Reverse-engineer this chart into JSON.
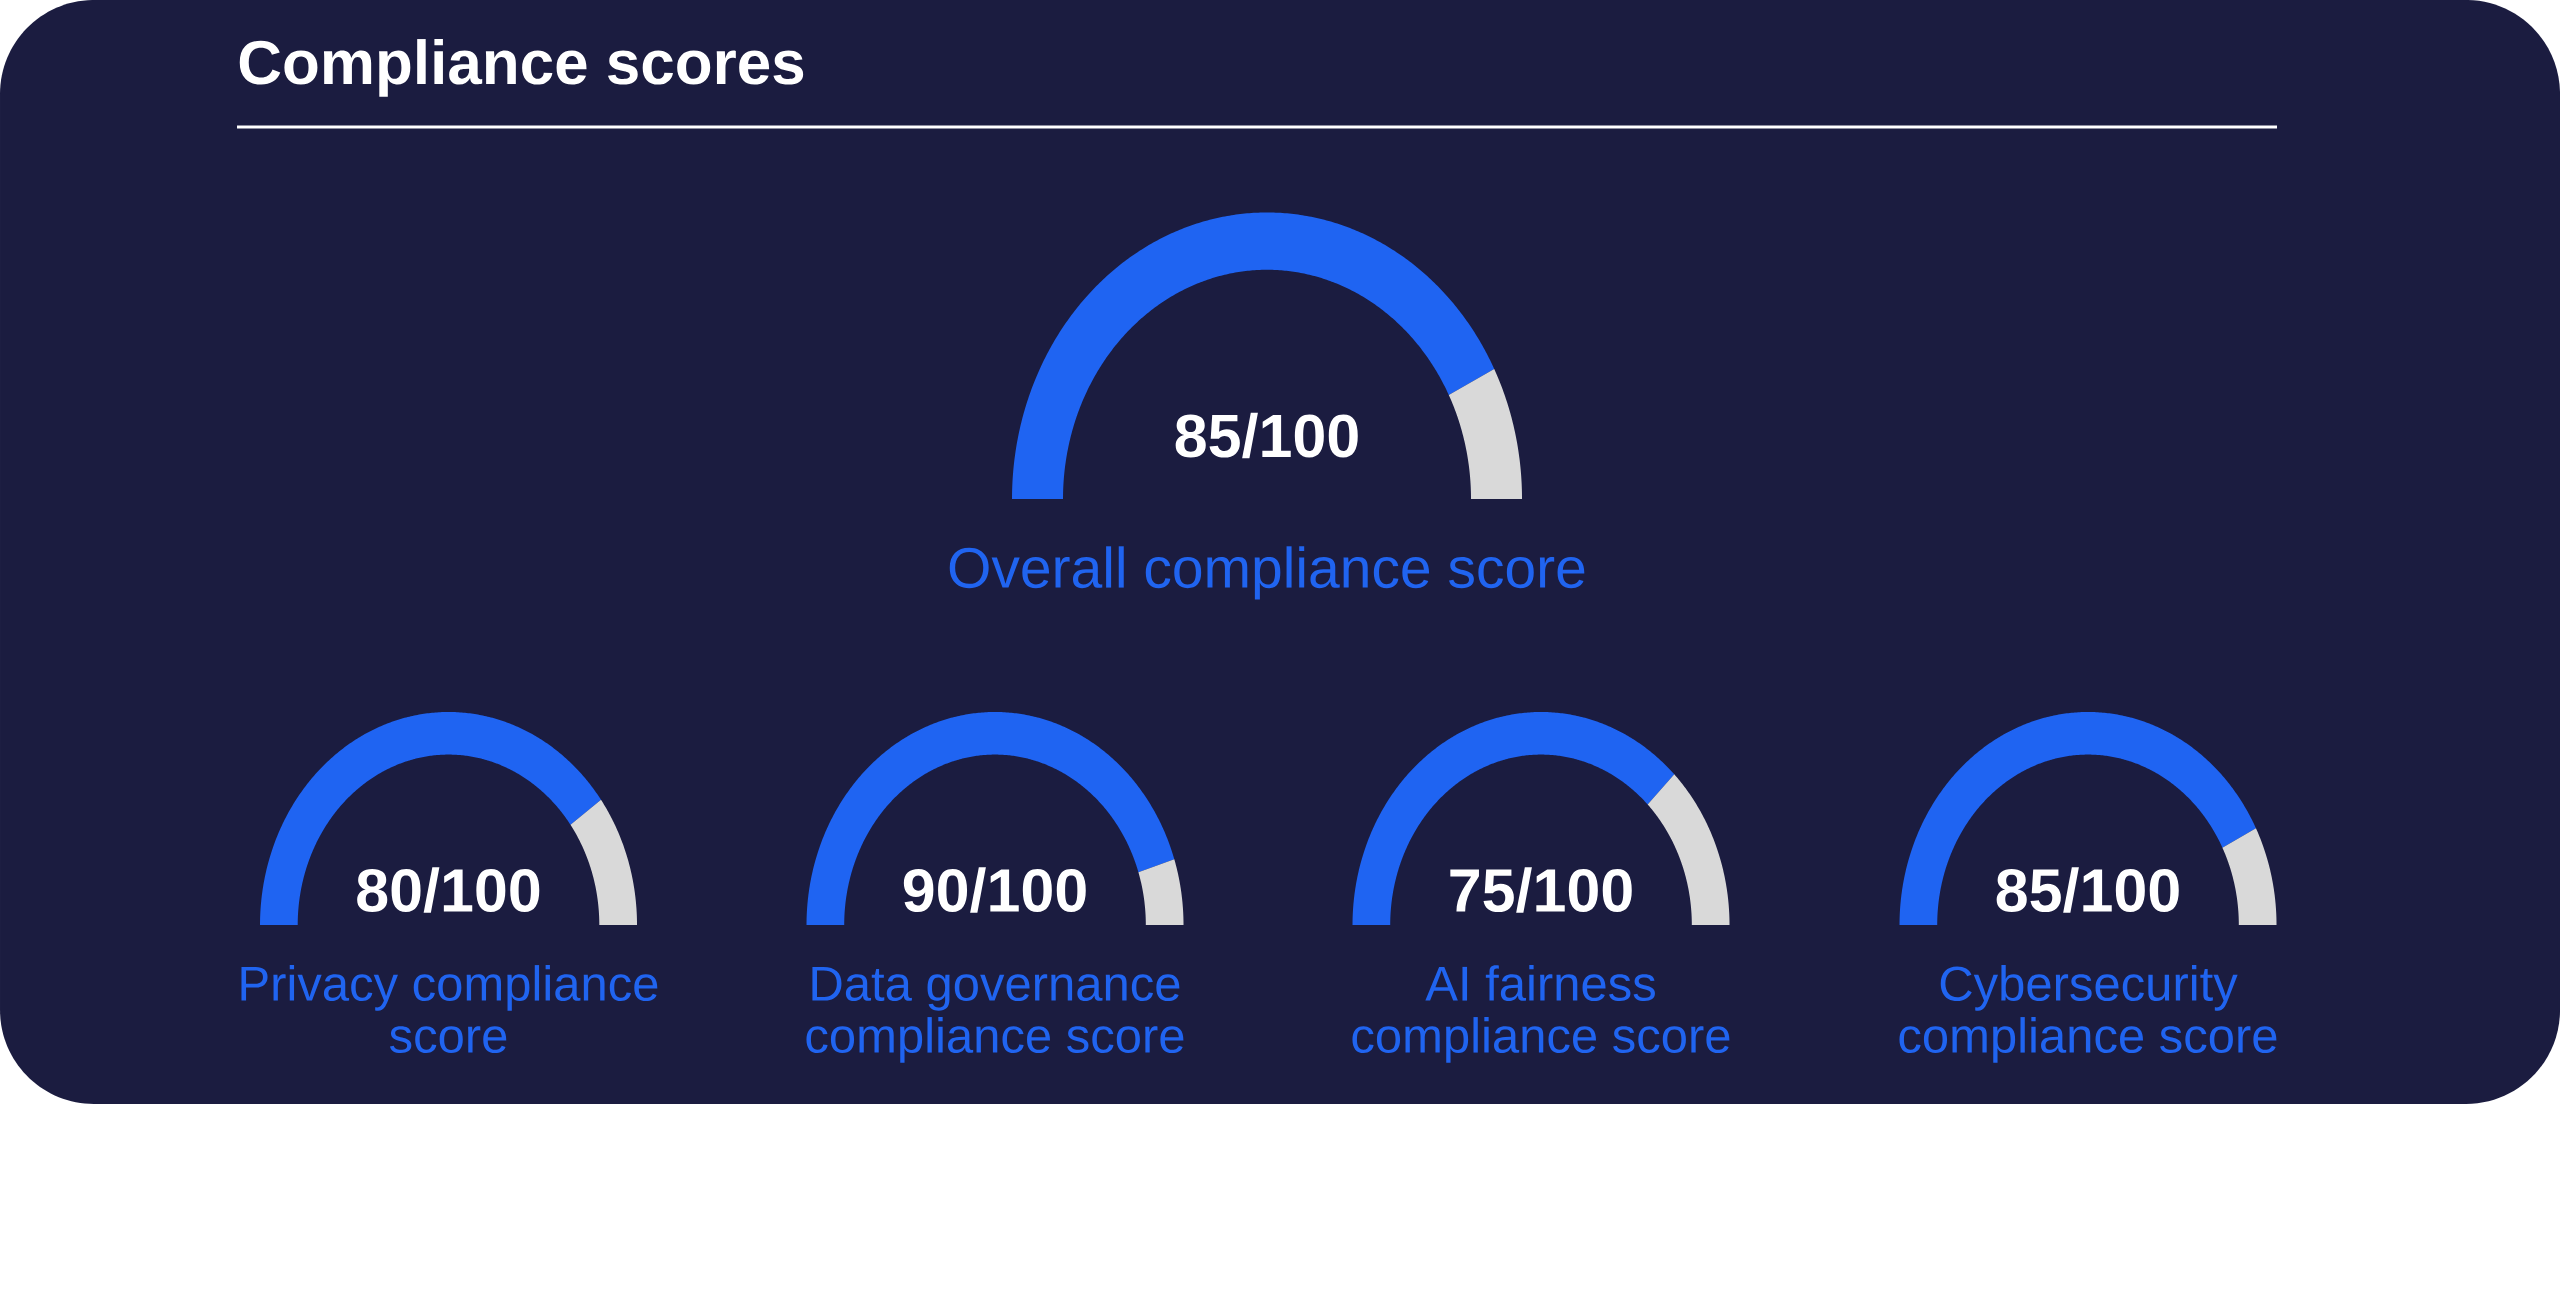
{
  "chart_data": [
    {
      "type": "other",
      "title": "Compliance scores"
    },
    {
      "type": "donut",
      "title": "Overall compliance score",
      "categories": [
        null,
        null
      ],
      "values": [
        85,
        15
      ],
      "colors": [
        "#1f64f2",
        "#d9d9d9"
      ],
      "value_labels": [
        "85/100",
        null
      ]
    },
    {
      "type": "donut",
      "title": "Privacy compliance score",
      "categories": [
        null,
        null
      ],
      "values": [
        80,
        20
      ],
      "colors": [
        "#1f64f2",
        "#d9d9d9"
      ],
      "value_labels": [
        "80/100",
        null
      ]
    },
    {
      "type": "donut",
      "title": "Data governance compliance score",
      "categories": [
        null,
        null
      ],
      "values": [
        90,
        10
      ],
      "colors": [
        "#1f64f2",
        "#d9d9d9"
      ],
      "value_labels": [
        "90/100",
        null
      ]
    },
    {
      "type": "donut",
      "title": "AI fairness compliance score",
      "categories": [
        null,
        null
      ],
      "values": [
        75,
        25
      ],
      "colors": [
        "#1f64f2",
        "#d9d9d9"
      ],
      "value_labels": [
        "75/100",
        null
      ]
    },
    {
      "type": "donut",
      "title": "Cybersecurity compliance score",
      "categories": [
        null,
        null
      ],
      "values": [
        85,
        15
      ],
      "colors": [
        "#1f64f2",
        "#d9d9d9"
      ],
      "value_labels": [
        "85/100",
        null
      ]
    }
  ]
}
